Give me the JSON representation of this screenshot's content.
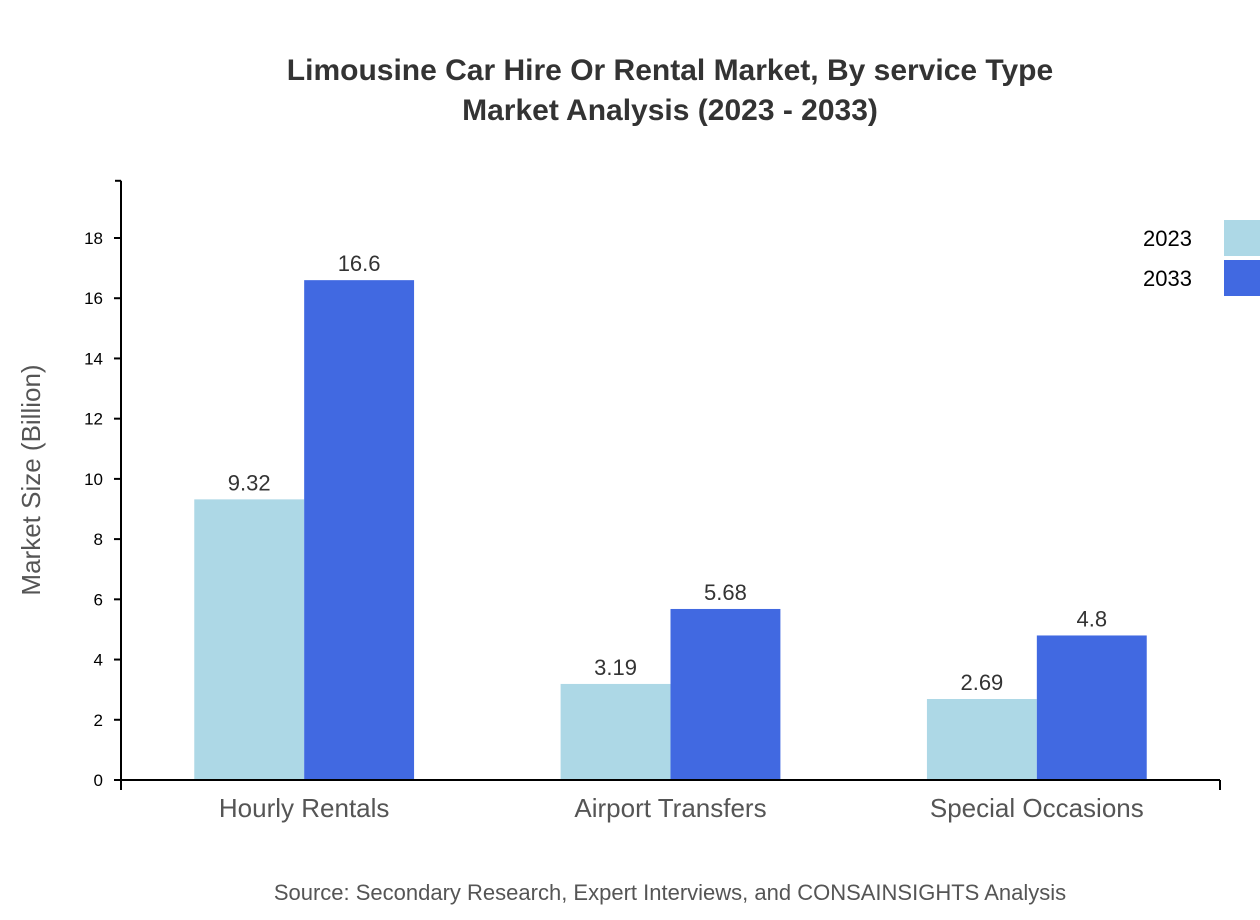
{
  "chart_data": {
    "type": "bar",
    "title": "Limousine Car Hire Or Rental Market, By service Type",
    "subtitle": "Market Analysis (2023 - 2033)",
    "xlabel": "",
    "ylabel": "Market Size (Billion)",
    "categories": [
      "Hourly Rentals",
      "Airport Transfers",
      "Special Occasions"
    ],
    "series": [
      {
        "name": "2023",
        "color": "#add8e6",
        "values": [
          9.32,
          3.19,
          2.69
        ]
      },
      {
        "name": "2033",
        "color": "#4169e1",
        "values": [
          16.6,
          5.68,
          4.8
        ]
      }
    ],
    "ylim": [
      0,
      19.9
    ],
    "yticks": [
      0,
      2,
      4,
      6,
      8,
      10,
      12,
      14,
      16,
      18
    ],
    "grid": false,
    "legend": "top-right",
    "source": "Source: Secondary Research, Expert Interviews, and CONSAINSIGHTS Analysis"
  }
}
